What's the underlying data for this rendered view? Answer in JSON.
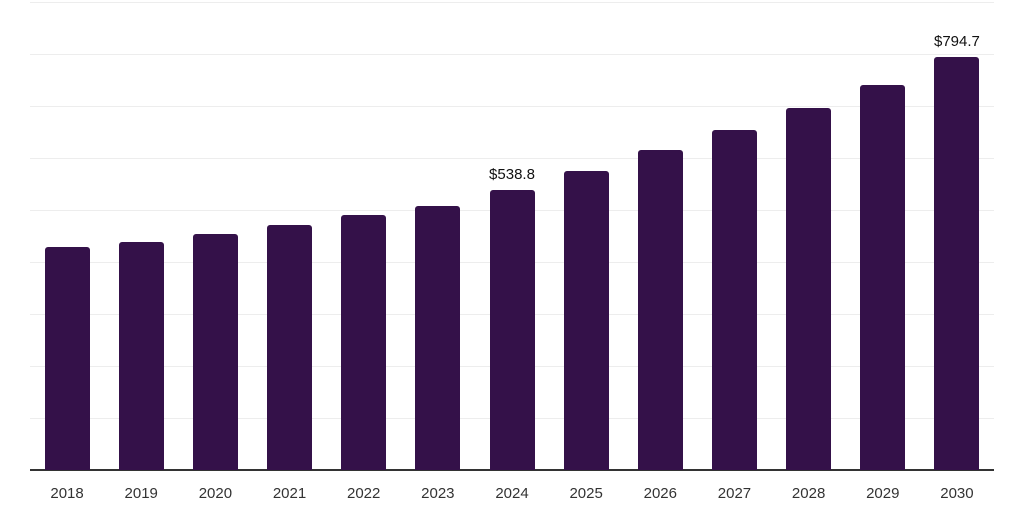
{
  "page": {
    "background_color": "#ffffff"
  },
  "chart_data": {
    "type": "bar",
    "title": "",
    "xlabel": "",
    "ylabel": "",
    "categories": [
      "2018",
      "2019",
      "2020",
      "2021",
      "2022",
      "2023",
      "2024",
      "2025",
      "2026",
      "2027",
      "2028",
      "2029",
      "2030"
    ],
    "values": [
      429,
      439,
      453,
      472,
      491,
      507,
      538.8,
      575,
      615,
      654,
      696,
      741,
      794.7
    ],
    "data_labels": [
      "",
      "",
      "",
      "",
      "",
      "",
      "$538.8",
      "",
      "",
      "",
      "",
      "",
      "$794.7"
    ],
    "ylim": [
      0,
      900
    ],
    "grid_step": 100,
    "grid_visible": true,
    "legend_position": "none",
    "bar_color": "#341149",
    "grid_color": "#ededed",
    "axis_color": "#333333",
    "tick_label_color": "#333333",
    "data_label_color": "#111111"
  }
}
